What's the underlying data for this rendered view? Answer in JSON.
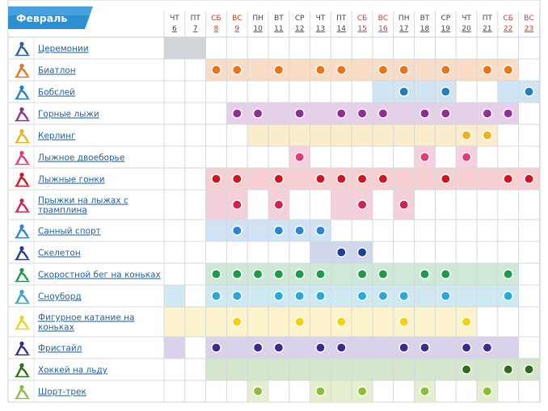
{
  "month": "Февраль",
  "days": [
    {
      "dow": "ЧТ",
      "date": "6",
      "weekend": false
    },
    {
      "dow": "ПТ",
      "date": "7",
      "weekend": false
    },
    {
      "dow": "СБ",
      "date": "8",
      "weekend": true
    },
    {
      "dow": "ВС",
      "date": "9",
      "weekend": true
    },
    {
      "dow": "ПН",
      "date": "10",
      "weekend": false
    },
    {
      "dow": "ВТ",
      "date": "11",
      "weekend": false
    },
    {
      "dow": "СР",
      "date": "12",
      "weekend": false
    },
    {
      "dow": "ЧТ",
      "date": "13",
      "weekend": false
    },
    {
      "dow": "ПТ",
      "date": "14",
      "weekend": false
    },
    {
      "dow": "СБ",
      "date": "15",
      "weekend": true
    },
    {
      "dow": "ВС",
      "date": "16",
      "weekend": true
    },
    {
      "dow": "ПН",
      "date": "17",
      "weekend": false
    },
    {
      "dow": "ВТ",
      "date": "18",
      "weekend": false
    },
    {
      "dow": "СР",
      "date": "19",
      "weekend": false
    },
    {
      "dow": "ЧТ",
      "date": "20",
      "weekend": false
    },
    {
      "dow": "ПТ",
      "date": "21",
      "weekend": false
    },
    {
      "dow": "СБ",
      "date": "22",
      "weekend": true
    },
    {
      "dow": "ВС",
      "date": "23",
      "weekend": true
    }
  ],
  "sports": [
    {
      "key": "ceremonies",
      "name": "Церемонии",
      "icon": "torch-icon",
      "color": "#2a5fa8",
      "light": "#d2d5da",
      "lines": [
        "Церемонии"
      ],
      "active": [
        0,
        1
      ],
      "medals": []
    },
    {
      "key": "biathlon",
      "name": "Биатлон",
      "icon": "biathlon-icon",
      "color": "#e8741e",
      "light": "#f9dcc6",
      "lines": [
        "Биатлон"
      ],
      "active": [
        2,
        3,
        4,
        5,
        6,
        7,
        8,
        9,
        10,
        11,
        12,
        13,
        14,
        15,
        16
      ],
      "medals": [
        2,
        3,
        5,
        7,
        8,
        10,
        11,
        13,
        15,
        16
      ]
    },
    {
      "key": "bobsleigh",
      "name": "Бобслей",
      "icon": "bobsleigh-icon",
      "color": "#1f7fbf",
      "light": "#d0e4f3",
      "lines": [
        "Бобслей"
      ],
      "active": [
        10,
        11,
        12,
        13,
        16,
        17
      ],
      "medals": [
        11,
        13,
        17
      ]
    },
    {
      "key": "alpine",
      "name": "Горные лыжи",
      "icon": "alpine-skiing-icon",
      "color": "#8e2f93",
      "light": "#e6cfe8",
      "lines": [
        "Горные лыжи"
      ],
      "active": [
        3,
        4,
        5,
        6,
        7,
        8,
        9,
        10,
        11,
        12,
        13,
        14,
        15,
        16
      ],
      "medals": [
        3,
        4,
        6,
        8,
        9,
        10,
        12,
        13,
        15,
        16
      ]
    },
    {
      "key": "curling",
      "name": "Керлинг",
      "icon": "curling-icon",
      "color": "#f0b21d",
      "light": "#fbeccb",
      "lines": [
        "Керлинг"
      ],
      "active": [
        4,
        5,
        6,
        7,
        8,
        9,
        10,
        11,
        12,
        13,
        14,
        15
      ],
      "medals": [
        14,
        15
      ]
    },
    {
      "key": "nordic",
      "name": "Лыжное двоеборье",
      "icon": "nordic-combined-icon",
      "color": "#e23c79",
      "light": "#f6d0dd",
      "lines": [
        "Лыжное двоеборье"
      ],
      "active": [
        6,
        12,
        14
      ],
      "medals": [
        6,
        12,
        14
      ]
    },
    {
      "key": "crosscountry",
      "name": "Лыжные гонки",
      "icon": "cross-country-icon",
      "color": "#d6121f",
      "light": "#f6cfd2",
      "lines": [
        "Лыжные гонки"
      ],
      "active": [
        2,
        3,
        4,
        5,
        6,
        7,
        8,
        9,
        10,
        11,
        12,
        13,
        14,
        15,
        16,
        17
      ],
      "medals": [
        2,
        3,
        5,
        7,
        8,
        9,
        10,
        13,
        16,
        17
      ]
    },
    {
      "key": "jumping",
      "name": "Прыжки на лыжах с трамплина",
      "icon": "ski-jumping-icon",
      "color": "#d2224f",
      "light": "#f4d0da",
      "lines": [
        "Прыжки на лыжах с",
        "трамплина"
      ],
      "active": [
        2,
        3,
        5,
        8,
        9,
        11
      ],
      "medals": [
        3,
        5,
        9,
        11
      ]
    },
    {
      "key": "luge",
      "name": "Санный спорт",
      "icon": "luge-icon",
      "color": "#2a86d4",
      "light": "#cfe3f4",
      "lines": [
        "Санный спорт"
      ],
      "active": [
        2,
        3,
        4,
        5,
        6,
        7
      ],
      "medals": [
        3,
        5,
        6,
        7
      ]
    },
    {
      "key": "skeleton",
      "name": "Скелетон",
      "icon": "skeleton-icon",
      "color": "#1e3f94",
      "light": "#d0d7ea",
      "lines": [
        "Скелетон"
      ],
      "active": [
        7,
        8,
        9
      ],
      "medals": [
        8,
        9
      ]
    },
    {
      "key": "speedskating",
      "name": "Скоростной бег на коньках",
      "icon": "speed-skating-icon",
      "color": "#1e9a4a",
      "light": "#cfe9d8",
      "lines": [
        "Скоростной бег на коньках"
      ],
      "active": [
        2,
        3,
        4,
        5,
        6,
        7,
        8,
        9,
        10,
        11,
        12,
        13,
        14,
        15,
        16
      ],
      "medals": [
        2,
        3,
        4,
        5,
        6,
        7,
        9,
        10,
        12,
        13,
        16
      ]
    },
    {
      "key": "snowboard",
      "name": "Сноуборд",
      "icon": "snowboard-icon",
      "color": "#2aa8d8",
      "light": "#cfe9f3",
      "lines": [
        "Сноуборд"
      ],
      "active": [
        0,
        2,
        3,
        4,
        5,
        6,
        7,
        8,
        9,
        10,
        11,
        12,
        13,
        14,
        15,
        16
      ],
      "medals": [
        2,
        3,
        5,
        6,
        7,
        9,
        10,
        11,
        13,
        16
      ]
    },
    {
      "key": "figure",
      "name": "Фигурное катание на коньках",
      "icon": "figure-skating-icon",
      "color": "#f2d20f",
      "light": "#fcf2cc",
      "lines": [
        "Фигурное катание на",
        "коньках"
      ],
      "active": [
        0,
        1,
        2,
        3,
        4,
        5,
        6,
        7,
        8,
        9,
        10,
        11,
        12,
        13,
        14
      ],
      "medals": [
        3,
        6,
        8,
        11,
        14
      ]
    },
    {
      "key": "freestyle",
      "name": "Фристайл",
      "icon": "freestyle-icon",
      "color": "#3d2a8c",
      "light": "#d9d2ea",
      "lines": [
        "Фристайл"
      ],
      "active": [
        0,
        2,
        3,
        4,
        5,
        6,
        7,
        8,
        9,
        10,
        11,
        12,
        13,
        14,
        15,
        16
      ],
      "medals": [
        2,
        4,
        5,
        7,
        8,
        11,
        12,
        14,
        15
      ]
    },
    {
      "key": "hockey",
      "name": "Хоккей на льду",
      "icon": "ice-hockey-icon",
      "color": "#2e6b1a",
      "light": "#d6e6cc",
      "lines": [
        "Хоккей на льду"
      ],
      "active": [
        2,
        3,
        4,
        5,
        6,
        7,
        8,
        9,
        10,
        11,
        12,
        13,
        14,
        15,
        16,
        17
      ],
      "medals": [
        14,
        16,
        17
      ]
    },
    {
      "key": "shorttrack",
      "name": "Шорт-трек",
      "icon": "short-track-icon",
      "color": "#8fbc3c",
      "light": "#e4efd0",
      "lines": [
        "Шорт-трек"
      ],
      "active": [
        4,
        7,
        8,
        9,
        12,
        15
      ],
      "medals": [
        4,
        7,
        9,
        12,
        15
      ]
    }
  ]
}
